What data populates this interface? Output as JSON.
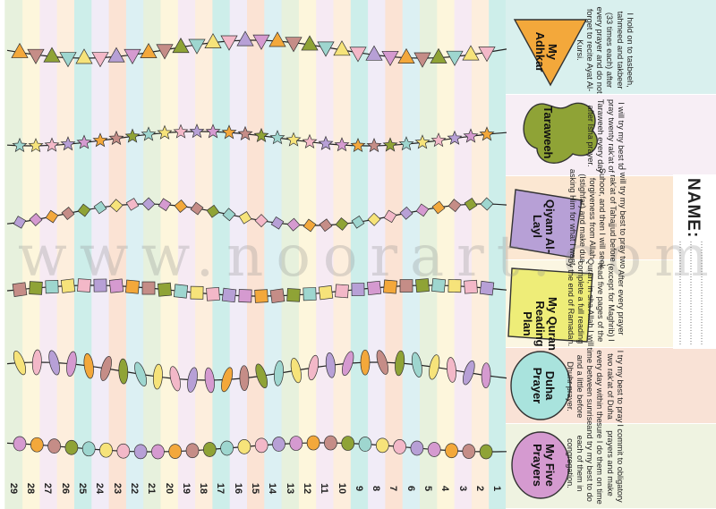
{
  "watermark": "www.noorart.com",
  "name_label": "NAME:",
  "days": [
    "1",
    "2",
    "3",
    "4",
    "5",
    "6",
    "7",
    "8",
    "9",
    "10",
    "11",
    "12",
    "13",
    "14",
    "15",
    "16",
    "17",
    "18",
    "19",
    "20",
    "21",
    "22",
    "23",
    "24",
    "25",
    "26",
    "27",
    "28",
    "29"
  ],
  "rows": [
    {
      "title": "My Adhkar",
      "desc": "I hold on to tasbeeh, tahmeed and takbeer (33 times each) after every prayer and do not forget to recite Ayat Al-Kursi.",
      "color": "#f3a83b",
      "bg": "#d9f0ee"
    },
    {
      "title": "Taraweeh",
      "desc": "I will try my best to pray twenty rak'at of Taraweeh every day after Isha prayer.",
      "color": "#8fa336",
      "bg": "#f7eef5"
    },
    {
      "title": "Qiyam Al-Layl",
      "desc": "I will try my best to pray two rak'at of Tahajjud before Suhoor, and then I will seek forgiveness from Allah (Istighfar) and make dua asking Him for what I want.",
      "color": "#b7a0d6",
      "bg": "#fbe7d2"
    },
    {
      "title": "My Quran Reading Plan",
      "desc": "After every prayer (except for Maghrib) I read five pages of the Quran, in sha Allah I will complete a full reading by the end of Ramadan.",
      "color": "#eeed78",
      "bg": "#fbf6e2"
    },
    {
      "title": "Duha Prayer",
      "desc": "I try my best to pray two rak'at of Duha every day within the time between sunrise and a little before Dhuhr prayer.",
      "color": "#a9e3dd",
      "bg": "#f9e2d6"
    },
    {
      "title": "My Five Prayers",
      "desc": "I commit to obligatory prayers and make sure I do them on time and try my best to do each of them in congregation.",
      "color": "#d59ad0",
      "bg": "#eff3e1"
    }
  ]
}
